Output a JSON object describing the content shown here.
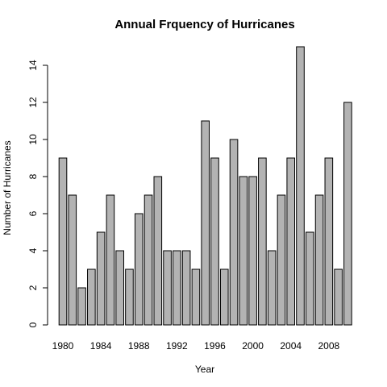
{
  "chart_data": {
    "type": "bar",
    "title": "Annual Frquency of Hurricanes",
    "xlabel": "Year",
    "ylabel": "Number of Hurricanes",
    "categories": [
      1980,
      1981,
      1982,
      1983,
      1984,
      1985,
      1986,
      1987,
      1988,
      1989,
      1990,
      1991,
      1992,
      1993,
      1994,
      1995,
      1996,
      1997,
      1998,
      1999,
      2000,
      2001,
      2002,
      2003,
      2004,
      2005,
      2006,
      2007,
      2008,
      2009,
      2010
    ],
    "values": [
      9,
      7,
      2,
      3,
      5,
      7,
      4,
      3,
      6,
      7,
      8,
      4,
      4,
      4,
      3,
      11,
      9,
      3,
      10,
      8,
      8,
      9,
      4,
      7,
      9,
      15,
      5,
      7,
      9,
      3,
      12
    ],
    "x_tick_labels": [
      "1980",
      "1984",
      "1988",
      "1992",
      "1996",
      "2000",
      "2004",
      "2008"
    ],
    "y_ticks": [
      0,
      2,
      4,
      6,
      8,
      10,
      12,
      14
    ],
    "ylim": [
      0,
      15
    ],
    "bar_color": "#b3b3b3",
    "grid": false,
    "legend": "none"
  }
}
